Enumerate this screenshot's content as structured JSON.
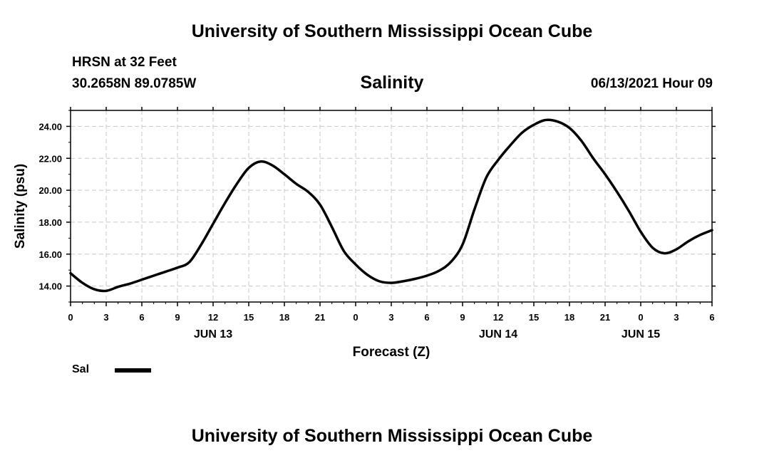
{
  "header": {
    "title": "University of Southern Mississippi Ocean Cube",
    "station": "HRSN at 32 Feet",
    "coords": "30.2658N  89.0785W",
    "chart_title": "Salinity",
    "run_time": "06/13/2021 Hour 09"
  },
  "footer": {
    "title": "University of Southern Mississippi Ocean Cube"
  },
  "legend": {
    "label": "Sal"
  },
  "colors": {
    "line": "#000000",
    "grid": "#c8c8c8",
    "background": "#ffffff"
  },
  "chart_data": {
    "type": "line",
    "title": "Salinity",
    "xlabel": "Forecast (Z)",
    "ylabel": "Salinity (psu)",
    "xlim": [
      0,
      54
    ],
    "ylim": [
      13,
      25
    ],
    "x_ticks": [
      0,
      3,
      6,
      9,
      12,
      15,
      18,
      21,
      24,
      27,
      30,
      33,
      36,
      39,
      42,
      45,
      48,
      51,
      54
    ],
    "x_tick_labels": [
      "0",
      "3",
      "6",
      "9",
      "12",
      "15",
      "18",
      "21",
      "0",
      "3",
      "6",
      "9",
      "12",
      "15",
      "18",
      "21",
      "0",
      "3",
      "6"
    ],
    "y_ticks": [
      14,
      16,
      18,
      20,
      22,
      24
    ],
    "y_tick_labels": [
      "14.00",
      "16.00",
      "18.00",
      "20.00",
      "22.00",
      "24.00"
    ],
    "date_labels": [
      {
        "x": 12,
        "label": "JUN 13"
      },
      {
        "x": 36,
        "label": "JUN 14"
      },
      {
        "x": 48,
        "label": "JUN 15"
      }
    ],
    "grid": true,
    "legend": "bottom-left",
    "series": [
      {
        "name": "Sal",
        "x": [
          0,
          1,
          2,
          3,
          4,
          5,
          6,
          7,
          8,
          9,
          10,
          11,
          12,
          13,
          14,
          15,
          16,
          17,
          18,
          19,
          20,
          21,
          22,
          23,
          24,
          25,
          26,
          27,
          28,
          29,
          30,
          31,
          32,
          33,
          34,
          35,
          36,
          37,
          38,
          39,
          40,
          41,
          42,
          43,
          44,
          45,
          46,
          47,
          48,
          49,
          50,
          51,
          52,
          53,
          54
        ],
        "values": [
          14.8,
          14.2,
          13.8,
          13.7,
          13.95,
          14.15,
          14.4,
          14.65,
          14.9,
          15.15,
          15.5,
          16.6,
          17.9,
          19.2,
          20.4,
          21.4,
          21.8,
          21.55,
          21.0,
          20.4,
          19.9,
          19.1,
          17.7,
          16.2,
          15.35,
          14.7,
          14.3,
          14.2,
          14.3,
          14.45,
          14.65,
          14.95,
          15.5,
          16.6,
          18.8,
          20.8,
          21.9,
          22.8,
          23.6,
          24.1,
          24.4,
          24.3,
          23.9,
          23.1,
          22.0,
          21.0,
          19.9,
          18.7,
          17.4,
          16.4,
          16.05,
          16.3,
          16.8,
          17.2,
          17.5
        ]
      }
    ]
  }
}
